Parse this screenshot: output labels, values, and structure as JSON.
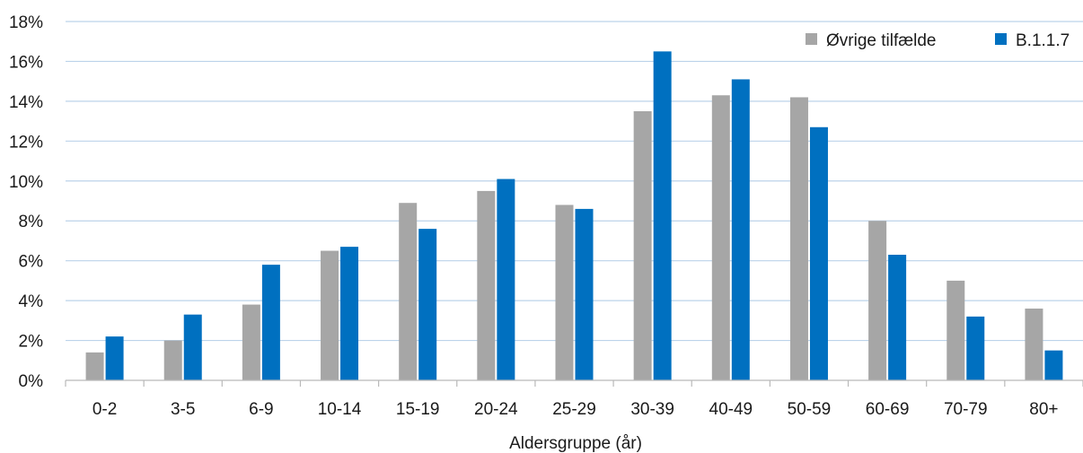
{
  "chart_data": {
    "type": "bar",
    "xlabel": "Aldersgruppe (år)",
    "ylabel": "",
    "ylim": [
      0,
      18
    ],
    "yticks": [
      "0%",
      "2%",
      "4%",
      "6%",
      "8%",
      "10%",
      "12%",
      "14%",
      "16%",
      "18%"
    ],
    "categories": [
      "0-2",
      "3-5",
      "6-9",
      "10-14",
      "15-19",
      "20-24",
      "25-29",
      "30-39",
      "40-49",
      "50-59",
      "60-69",
      "70-79",
      "80+"
    ],
    "series": [
      {
        "name": "Øvrige tilfælde",
        "color": "#a6a6a6",
        "values": [
          1.4,
          2.0,
          3.8,
          6.5,
          8.9,
          9.5,
          8.8,
          13.5,
          14.3,
          14.2,
          8.0,
          5.0,
          3.6
        ]
      },
      {
        "name": "B.1.1.7",
        "color": "#0070c0",
        "values": [
          2.2,
          3.3,
          5.8,
          6.7,
          7.6,
          10.1,
          8.6,
          16.5,
          15.1,
          12.7,
          6.3,
          3.2,
          1.5
        ]
      }
    ],
    "grid": true,
    "legend_position": "top-right"
  }
}
